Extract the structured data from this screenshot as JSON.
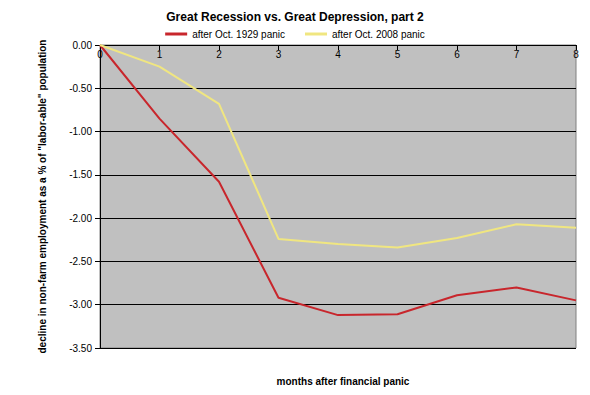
{
  "chart_data": {
    "type": "line",
    "title": "Great Recession vs. Great Depression, part 2",
    "x_label": "months after financial panic",
    "y_label": "decline in non-farm employment as a % of \"labor-able\" population",
    "categories": [
      "0",
      "1",
      "2",
      "3",
      "4",
      "5",
      "6",
      "7",
      "8"
    ],
    "series": [
      {
        "name": "after Oct. 1929 panic",
        "color": "#c8262c",
        "values": [
          0,
          -0.85,
          -1.58,
          -2.92,
          -3.12,
          -3.11,
          -2.89,
          -2.8,
          -2.95
        ]
      },
      {
        "name": "after Oct. 2008 panic",
        "color": "#f0e680",
        "values": [
          0,
          -0.25,
          -0.68,
          -2.24,
          -2.3,
          -2.34,
          -2.23,
          -2.07,
          -2.11
        ]
      }
    ],
    "ylim": [
      -3.5,
      0
    ],
    "yticks": [
      {
        "value": -3.5,
        "label": "-3.50"
      },
      {
        "value": -3,
        "label": "-3.00"
      },
      {
        "value": -2.5,
        "label": "-2.50"
      },
      {
        "value": -2,
        "label": "-2.00"
      },
      {
        "value": -1.5,
        "label": "-1.50"
      },
      {
        "value": -1,
        "label": "-1.00"
      },
      {
        "value": -0.5,
        "label": "-0.50"
      },
      {
        "value": 0,
        "label": "0.00"
      }
    ],
    "grid": true,
    "legend": "top"
  }
}
